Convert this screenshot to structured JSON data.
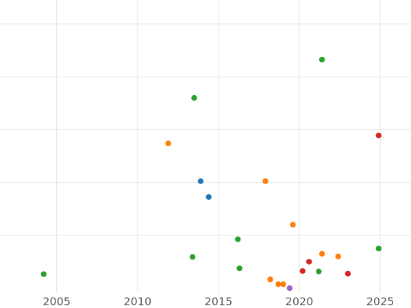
{
  "chart_data": {
    "type": "scatter",
    "title": "",
    "xlabel": "",
    "ylabel": "",
    "xlim": [
      2001.5,
      2026.9
    ],
    "ylim": [
      0,
      1
    ],
    "grid": true,
    "x_ticks": [
      2005,
      2010,
      2015,
      2020,
      2025
    ],
    "y_gridlines": [
      0.2,
      0.4,
      0.6,
      0.8,
      1.0
    ],
    "series": [
      {
        "color": "#1f77b4",
        "points": [
          {
            "x": 2013.9,
            "y": 0.405
          },
          {
            "x": 2014.4,
            "y": 0.345
          }
        ]
      },
      {
        "color": "#ff7f0e",
        "points": [
          {
            "x": 2011.9,
            "y": 0.548
          },
          {
            "x": 2017.9,
            "y": 0.405
          },
          {
            "x": 2019.6,
            "y": 0.24
          },
          {
            "x": 2021.4,
            "y": 0.13
          },
          {
            "x": 2022.4,
            "y": 0.12
          },
          {
            "x": 2018.2,
            "y": 0.033
          },
          {
            "x": 2018.7,
            "y": 0.015
          },
          {
            "x": 2019.0,
            "y": 0.015
          }
        ]
      },
      {
        "color": "#2ca02c",
        "points": [
          {
            "x": 2021.4,
            "y": 0.865
          },
          {
            "x": 2013.5,
            "y": 0.72
          },
          {
            "x": 2016.2,
            "y": 0.185
          },
          {
            "x": 2024.9,
            "y": 0.15
          },
          {
            "x": 2013.4,
            "y": 0.118
          },
          {
            "x": 2016.3,
            "y": 0.075
          },
          {
            "x": 2021.2,
            "y": 0.063
          },
          {
            "x": 2004.2,
            "y": 0.053
          }
        ]
      },
      {
        "color": "#d62728",
        "points": [
          {
            "x": 2024.9,
            "y": 0.578
          },
          {
            "x": 2020.6,
            "y": 0.1
          },
          {
            "x": 2020.2,
            "y": 0.065
          },
          {
            "x": 2023.0,
            "y": 0.055
          }
        ]
      },
      {
        "color": "#9467bd",
        "points": [
          {
            "x": 2019.4,
            "y": 0.0
          }
        ]
      }
    ]
  }
}
